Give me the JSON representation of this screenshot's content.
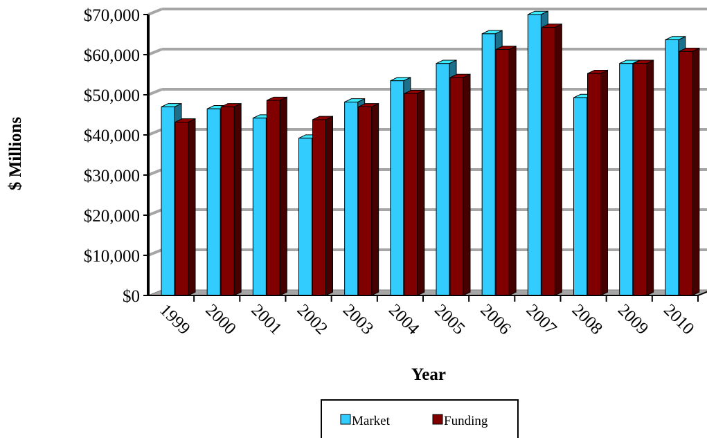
{
  "chart_data": {
    "type": "bar",
    "title": "",
    "xlabel": "Year",
    "ylabel": "$ Millions",
    "ylim": [
      0,
      70000
    ],
    "y_ticks": [
      0,
      10000,
      20000,
      30000,
      40000,
      50000,
      60000,
      70000
    ],
    "y_tick_labels": [
      "$0",
      "$10,000",
      "$20,000",
      "$30,000",
      "$40,000",
      "$50,000",
      "$60,000",
      "$70,000"
    ],
    "categories": [
      "1999",
      "2000",
      "2001",
      "2002",
      "2003",
      "2004",
      "2005",
      "2006",
      "2007",
      "2008",
      "2009",
      "2010"
    ],
    "series": [
      {
        "name": "Market",
        "color": "#33ccff",
        "values": [
          47000,
          46500,
          44200,
          39200,
          48200,
          53500,
          57800,
          65200,
          70000,
          49300,
          57800,
          63700
        ]
      },
      {
        "name": "Funding",
        "color": "#800000",
        "values": [
          43200,
          47000,
          48600,
          43800,
          47000,
          50300,
          54300,
          61300,
          66800,
          55300,
          57800,
          60800
        ]
      }
    ],
    "grid": true,
    "legend_position": "bottom"
  }
}
